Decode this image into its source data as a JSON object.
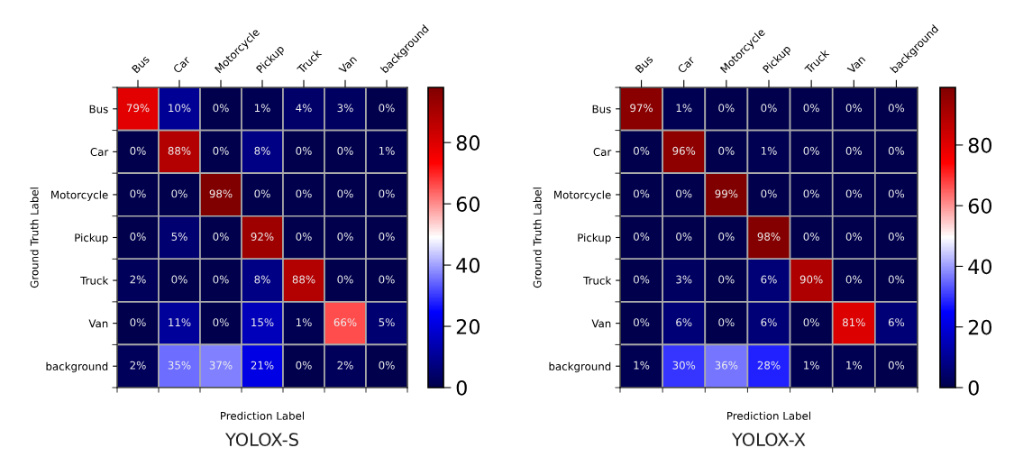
{
  "chart_data": [
    {
      "type": "heatmap",
      "title": "YOLOX-S",
      "xlabel": "Prediction Label",
      "ylabel": "Ground Truth Label",
      "categories": [
        "Bus",
        "Car",
        "Motorcycle",
        "Pickup",
        "Truck",
        "Van",
        "background"
      ],
      "y_categories": [
        "Bus",
        "Car",
        "Motorcycle",
        "Pickup",
        "Truck",
        "Van",
        "background"
      ],
      "cells": [
        [
          79,
          10,
          0,
          1,
          4,
          3,
          0
        ],
        [
          0,
          88,
          0,
          8,
          0,
          0,
          1
        ],
        [
          0,
          0,
          98,
          0,
          0,
          0,
          0
        ],
        [
          0,
          5,
          0,
          92,
          0,
          0,
          0
        ],
        [
          2,
          0,
          0,
          8,
          88,
          0,
          0
        ],
        [
          0,
          11,
          0,
          15,
          1,
          66,
          5
        ],
        [
          2,
          35,
          37,
          21,
          0,
          2,
          0
        ]
      ],
      "cell_labels": [
        [
          "79%",
          "10%",
          "0%",
          "1%",
          "4%",
          "3%",
          "0%"
        ],
        [
          "0%",
          "88%",
          "0%",
          "8%",
          "0%",
          "0%",
          "1%"
        ],
        [
          "0%",
          "0%",
          "98%",
          "0%",
          "0%",
          "0%",
          "0%"
        ],
        [
          "0%",
          "5%",
          "0%",
          "92%",
          "0%",
          "0%",
          "0%"
        ],
        [
          "2%",
          "0%",
          "0%",
          "8%",
          "88%",
          "0%",
          "0%"
        ],
        [
          "0%",
          "11%",
          "0%",
          "15%",
          "1%",
          "66%",
          "5%"
        ],
        [
          "2%",
          "35%",
          "37%",
          "21%",
          "0%",
          "2%",
          "0%"
        ]
      ],
      "clim": [
        0,
        98
      ],
      "cticks": [
        0,
        20,
        40,
        60,
        80
      ]
    },
    {
      "type": "heatmap",
      "title": "YOLOX-X",
      "xlabel": "Prediction Label",
      "ylabel": "Ground Truth Label",
      "categories": [
        "Bus",
        "Car",
        "Motorcycle",
        "Pickup",
        "Truck",
        "Van",
        "background"
      ],
      "y_categories": [
        "Bus",
        "Car",
        "Motorcycle",
        "Pickup",
        "Truck",
        "Van",
        "background"
      ],
      "cells": [
        [
          97,
          1,
          0,
          0,
          0,
          0,
          0
        ],
        [
          0,
          96,
          0,
          1,
          0,
          0,
          0
        ],
        [
          0,
          0,
          99,
          0,
          0,
          0,
          0
        ],
        [
          0,
          0,
          0,
          98,
          0,
          0,
          0
        ],
        [
          0,
          3,
          0,
          6,
          90,
          0,
          0
        ],
        [
          0,
          6,
          0,
          6,
          0,
          81,
          6
        ],
        [
          1,
          30,
          36,
          28,
          1,
          1,
          0
        ]
      ],
      "cell_labels": [
        [
          "97%",
          "1%",
          "0%",
          "0%",
          "0%",
          "0%",
          "0%"
        ],
        [
          "0%",
          "96%",
          "0%",
          "1%",
          "0%",
          "0%",
          "0%"
        ],
        [
          "0%",
          "0%",
          "99%",
          "0%",
          "0%",
          "0%",
          "0%"
        ],
        [
          "0%",
          "0%",
          "0%",
          "98%",
          "0%",
          "0%",
          "0%"
        ],
        [
          "0%",
          "3%",
          "0%",
          "6%",
          "90%",
          "0%",
          "0%"
        ],
        [
          "0%",
          "6%",
          "0%",
          "6%",
          "0%",
          "81%",
          "6%"
        ],
        [
          "1%",
          "30%",
          "36%",
          "28%",
          "1%",
          "1%",
          "0%"
        ]
      ],
      "clim": [
        0,
        99
      ],
      "cticks": [
        0,
        20,
        40,
        60,
        80
      ]
    }
  ]
}
